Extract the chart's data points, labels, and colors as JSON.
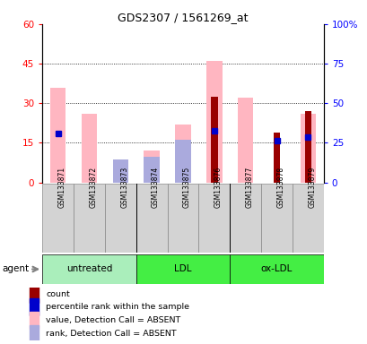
{
  "title": "GDS2307 / 1561269_at",
  "samples": [
    "GSM133871",
    "GSM133872",
    "GSM133873",
    "GSM133874",
    "GSM133875",
    "GSM133876",
    "GSM133877",
    "GSM133878",
    "GSM133879"
  ],
  "value_absent": [
    36.0,
    26.0,
    5.5,
    12.0,
    22.0,
    46.0,
    32.0,
    null,
    26.0
  ],
  "rank_absent": [
    null,
    null,
    14.5,
    16.0,
    27.0,
    null,
    null,
    null,
    null
  ],
  "count": [
    null,
    null,
    null,
    null,
    null,
    32.5,
    null,
    19.0,
    27.0
  ],
  "percentile": [
    31.0,
    null,
    null,
    null,
    null,
    32.5,
    null,
    26.5,
    28.5
  ],
  "ylim_left": [
    0,
    60
  ],
  "ylim_right": [
    0,
    100
  ],
  "yticks_left": [
    0,
    15,
    30,
    45,
    60
  ],
  "yticks_right": [
    0,
    25,
    50,
    75,
    100
  ],
  "color_count": "#990000",
  "color_percentile": "#0000CC",
  "color_value_absent": "#FFB6C1",
  "color_rank_absent": "#AAAADD",
  "group_defs": [
    {
      "start": 0,
      "end": 2,
      "label": "untreated",
      "color": "#AAEEBB"
    },
    {
      "start": 3,
      "end": 5,
      "label": "LDL",
      "color": "#44EE44"
    },
    {
      "start": 6,
      "end": 8,
      "label": "ox-LDL",
      "color": "#44EE44"
    }
  ],
  "legend_items": [
    {
      "color": "#990000",
      "label": "count",
      "shape": "square"
    },
    {
      "color": "#0000CC",
      "label": "percentile rank within the sample",
      "shape": "square"
    },
    {
      "color": "#FFB6C1",
      "label": "value, Detection Call = ABSENT",
      "shape": "square"
    },
    {
      "color": "#AAAADD",
      "label": "rank, Detection Call = ABSENT",
      "shape": "square"
    }
  ],
  "agent_label": "agent"
}
